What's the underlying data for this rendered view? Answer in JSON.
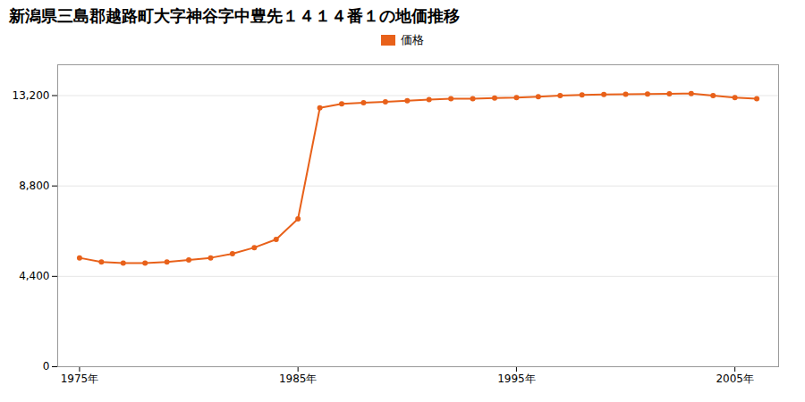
{
  "chart_data": {
    "type": "line",
    "title": "新潟県三島郡越路町大字神谷字中豊先１４１４番１の地価推移",
    "x": [
      1975,
      1976,
      1977,
      1978,
      1979,
      1980,
      1981,
      1982,
      1983,
      1984,
      1985,
      1986,
      1987,
      1988,
      1989,
      1990,
      1991,
      1992,
      1993,
      1994,
      1995,
      1996,
      1997,
      1998,
      1999,
      2000,
      2001,
      2002,
      2003,
      2004,
      2005,
      2006
    ],
    "series": [
      {
        "name": "価格",
        "color": "#e8611a",
        "marker": "circle",
        "values": [
          5300,
          5100,
          5050,
          5050,
          5100,
          5200,
          5300,
          5500,
          5800,
          6200,
          7200,
          12600,
          12800,
          12850,
          12900,
          12950,
          13000,
          13050,
          13050,
          13080,
          13100,
          13150,
          13200,
          13230,
          13250,
          13270,
          13280,
          13290,
          13300,
          13200,
          13100,
          13050
        ]
      }
    ],
    "xlim": [
      1974,
      2007
    ],
    "xticks": [
      {
        "value": 1975,
        "label": "1975年"
      },
      {
        "value": 1985,
        "label": "1985年"
      },
      {
        "value": 1995,
        "label": "1995年"
      },
      {
        "value": 2005,
        "label": "2005年"
      }
    ],
    "ylim": [
      0,
      14700
    ],
    "yticks": [
      0,
      {
        "value": 4400,
        "label": "4,400"
      },
      {
        "value": 8800,
        "label": "8,800"
      },
      {
        "value": 13200,
        "label": "13,200"
      }
    ],
    "grid": "y",
    "legend": "top"
  }
}
